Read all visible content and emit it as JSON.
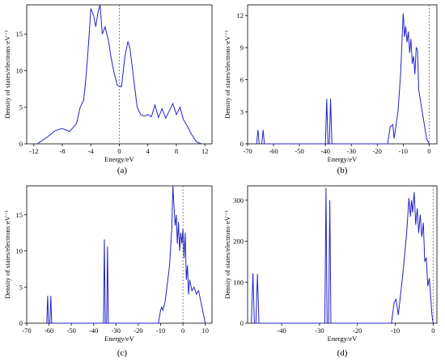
{
  "chart_data": [
    {
      "type": "line",
      "label": "(a)",
      "xlabel": "Energy/eV",
      "ylabel": "Density of states/electrons·eV⁻¹",
      "xlim": [
        -13,
        13
      ],
      "ylim": [
        0,
        19
      ],
      "xticks": [
        -12,
        -8,
        -4,
        0,
        4,
        8,
        12
      ],
      "yticks": [
        0,
        5,
        10,
        15
      ],
      "fermi_line": 0,
      "x": [
        -11.5,
        -10,
        -9,
        -8,
        -7,
        -6.5,
        -6,
        -5.5,
        -5,
        -4.6,
        -4.3,
        -4,
        -3.6,
        -3.3,
        -3,
        -2.7,
        -2.4,
        -2,
        -1.5,
        -1.2,
        -0.8,
        -0.3,
        0.3,
        0.8,
        1.2,
        1.5,
        2,
        2.5,
        3,
        3.5,
        4,
        4.5,
        5,
        5.5,
        6,
        6.5,
        7,
        7.5,
        8,
        8.5,
        9,
        9.5,
        10,
        10.8,
        11.5
      ],
      "y": [
        0,
        1,
        1.8,
        2.1,
        1.7,
        2.2,
        2.8,
        5,
        6,
        10,
        14,
        18.5,
        17.5,
        16,
        18,
        19,
        15,
        16,
        14,
        12,
        10,
        8,
        7.8,
        12,
        14,
        13,
        9,
        5,
        4,
        3.8,
        4,
        3.7,
        5.3,
        3.6,
        4.8,
        3.5,
        4.5,
        5.5,
        4,
        5,
        3.3,
        2.5,
        1.5,
        0.3,
        0
      ]
    },
    {
      "type": "line",
      "label": "(b)",
      "xlabel": "Energy/eV",
      "ylabel": "Density of states/electrons·eV⁻¹",
      "xlim": [
        -70,
        3
      ],
      "ylim": [
        0,
        13
      ],
      "xticks": [
        -70,
        -60,
        -50,
        -40,
        -30,
        -20,
        -10,
        0
      ],
      "yticks": [
        0,
        3,
        6,
        9,
        12
      ],
      "fermi_line": 0,
      "x": [
        -66.5,
        -66,
        -65.5,
        -64.5,
        -64,
        -63.5,
        -40,
        -39.5,
        -39,
        -38.5,
        -38,
        -37.5,
        -16,
        -15,
        -14,
        -13.5,
        -12,
        -11,
        -10,
        -9.8,
        -9.5,
        -9,
        -8.5,
        -8,
        -7.5,
        -7,
        -6.5,
        -6,
        -5.5,
        -5,
        -4.5,
        -4,
        -3,
        -2,
        -1,
        0
      ],
      "y": [
        0,
        1.3,
        0,
        0,
        1.3,
        0,
        0,
        4.2,
        0,
        0,
        4.2,
        0,
        0,
        1.6,
        1.8,
        0.5,
        3,
        6.5,
        12.2,
        11.5,
        10,
        11,
        9.5,
        10.5,
        8.5,
        9.8,
        7.5,
        8.2,
        6.5,
        9,
        8.8,
        5,
        3.5,
        2,
        0.5,
        0
      ]
    },
    {
      "type": "line",
      "label": "(c)",
      "xlabel": "Energy/eV",
      "ylabel": "Density of states/electrons·eV⁻¹",
      "xlim": [
        -70,
        13
      ],
      "ylim": [
        0,
        19
      ],
      "xticks": [
        -70,
        -60,
        -50,
        -40,
        -30,
        -20,
        -10,
        0,
        10
      ],
      "yticks": [
        0,
        5,
        10,
        15
      ],
      "fermi_line": 0,
      "x": [
        -61,
        -60.6,
        -60.2,
        -59.6,
        -59.2,
        -58.8,
        -35.6,
        -35.2,
        -34.8,
        -34.2,
        -33.8,
        -33.4,
        -11,
        -10,
        -9.5,
        -9,
        -8,
        -6,
        -5,
        -4.5,
        -4,
        -3.5,
        -3,
        -2.5,
        -2,
        -1.5,
        -1,
        -0.5,
        0,
        0.5,
        1,
        1.5,
        2,
        2.5,
        3,
        4,
        5,
        6,
        7,
        8,
        9,
        10
      ],
      "y": [
        0,
        3.8,
        0,
        0,
        3.8,
        0,
        0,
        11.6,
        0,
        0,
        10.6,
        0,
        0,
        1.8,
        2.2,
        1.8,
        3,
        8,
        13,
        19,
        16,
        13.5,
        15,
        11,
        14,
        10,
        12.5,
        11,
        13,
        9,
        12.5,
        6,
        8,
        4,
        6,
        4.5,
        5,
        4,
        4.5,
        3,
        1.5,
        0
      ]
    },
    {
      "type": "line",
      "label": "(d)",
      "xlabel": "Energy/eV",
      "ylabel": "Density of states/electrons·eV⁻¹",
      "xlim": [
        -49,
        1
      ],
      "ylim": [
        0,
        335
      ],
      "xticks": [
        -40,
        -30,
        -20,
        -10,
        0
      ],
      "yticks": [
        0,
        100,
        200,
        300
      ],
      "fermi_line": 0,
      "x": [
        -48,
        -47.6,
        -47.2,
        -46.8,
        -46.4,
        -46,
        -28.6,
        -28.3,
        -28,
        -27.6,
        -27.3,
        -27,
        -11,
        -10.3,
        -9.8,
        -9.2,
        -8,
        -7,
        -6.4,
        -6,
        -5.7,
        -5.4,
        -5,
        -4.6,
        -4.2,
        -3.8,
        -3.4,
        -3,
        -2.6,
        -2.2,
        -1.8,
        -1.4,
        -1,
        -0.6,
        -0.3,
        0
      ],
      "y": [
        0,
        122,
        0,
        0,
        120,
        0,
        0,
        330,
        0,
        0,
        300,
        0,
        0,
        50,
        58,
        20,
        120,
        220,
        305,
        260,
        300,
        270,
        320,
        240,
        280,
        220,
        265,
        210,
        245,
        150,
        160,
        90,
        110,
        60,
        20,
        0
      ]
    }
  ],
  "panel_labels": [
    "(a)",
    "(b)",
    "(c)",
    "(d)"
  ],
  "colors": {
    "curve": "#2323c8",
    "axis": "#000000",
    "fermi": "#555555"
  }
}
